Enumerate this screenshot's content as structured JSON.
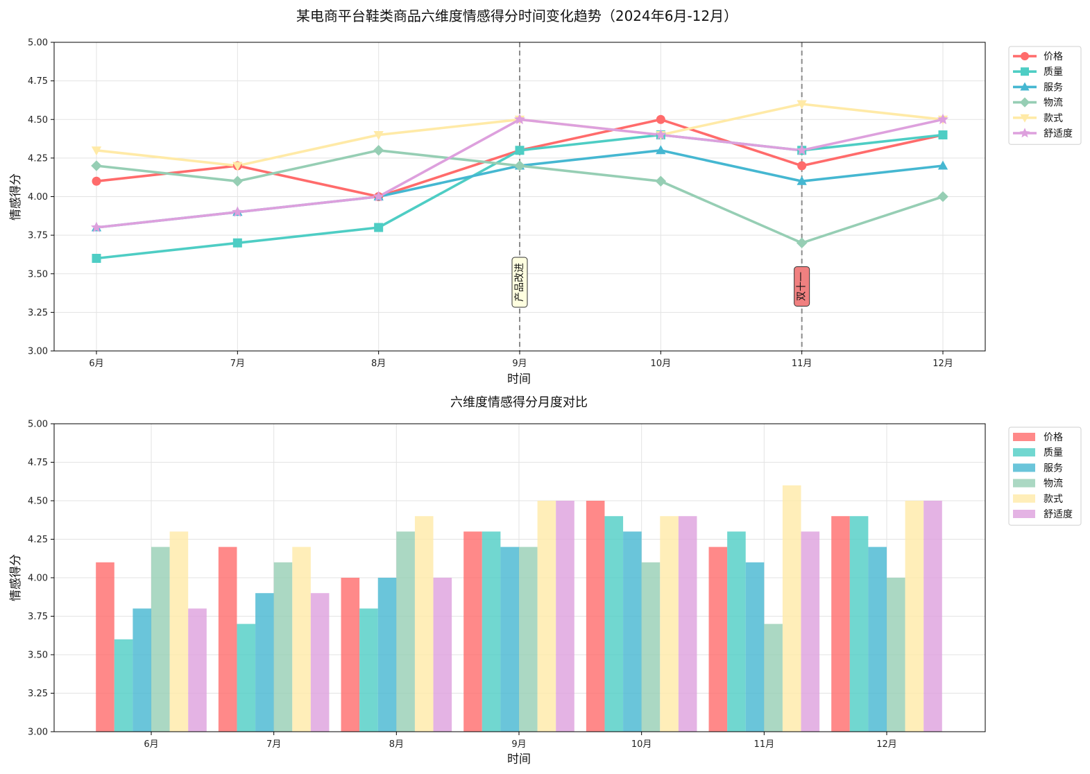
{
  "chart_data": [
    {
      "type": "line",
      "title": "某电商平台鞋类商品六维度情感得分时间变化趋势（2024年6月-12月）",
      "xlabel": "时间",
      "ylabel": "情感得分",
      "categories": [
        "6月",
        "7月",
        "8月",
        "9月",
        "10月",
        "11月",
        "12月"
      ],
      "ylim": [
        3.0,
        5.0
      ],
      "yticks": [
        "3.00",
        "3.25",
        "3.50",
        "3.75",
        "4.00",
        "4.25",
        "4.50",
        "4.75",
        "5.00"
      ],
      "grid": true,
      "legend_position": "outside-top-right",
      "series": [
        {
          "name": "价格",
          "color": "#FF6B6B",
          "marker": "circle",
          "values": [
            4.1,
            4.2,
            4.0,
            4.3,
            4.5,
            4.2,
            4.4
          ]
        },
        {
          "name": "质量",
          "color": "#4ECDC4",
          "marker": "square",
          "values": [
            3.6,
            3.7,
            3.8,
            4.3,
            4.4,
            4.3,
            4.4
          ]
        },
        {
          "name": "服务",
          "color": "#45B7D1",
          "marker": "triangle-up",
          "values": [
            3.8,
            3.9,
            4.0,
            4.2,
            4.3,
            4.1,
            4.2
          ]
        },
        {
          "name": "物流",
          "color": "#96CEB4",
          "marker": "diamond",
          "values": [
            4.2,
            4.1,
            4.3,
            4.2,
            4.1,
            3.7,
            4.0
          ]
        },
        {
          "name": "款式",
          "color": "#FFEAA7",
          "marker": "triangle-down",
          "values": [
            4.3,
            4.2,
            4.4,
            4.5,
            4.4,
            4.6,
            4.5
          ]
        },
        {
          "name": "舒适度",
          "color": "#DDA0DD",
          "marker": "star",
          "values": [
            3.8,
            3.9,
            4.0,
            4.5,
            4.4,
            4.3,
            4.5
          ]
        }
      ],
      "annotations": [
        {
          "category": "9月",
          "text": "产品改进",
          "box_color": "#FFFFE0"
        },
        {
          "category": "11月",
          "text": "双十一",
          "box_color": "#F08080"
        }
      ]
    },
    {
      "type": "bar",
      "title": "六维度情感得分月度对比",
      "xlabel": "时间",
      "ylabel": "情感得分",
      "categories": [
        "6月",
        "7月",
        "8月",
        "9月",
        "10月",
        "11月",
        "12月"
      ],
      "ylim": [
        3.0,
        5.0
      ],
      "yticks": [
        "3.00",
        "3.25",
        "3.50",
        "3.75",
        "4.00",
        "4.25",
        "4.50",
        "4.75",
        "5.00"
      ],
      "grid": true,
      "legend_position": "outside-top-right",
      "series": [
        {
          "name": "价格",
          "color": "#FF6B6B",
          "values": [
            4.1,
            4.2,
            4.0,
            4.3,
            4.5,
            4.2,
            4.4
          ]
        },
        {
          "name": "质量",
          "color": "#4ECDC4",
          "values": [
            3.6,
            3.7,
            3.8,
            4.3,
            4.4,
            4.3,
            4.4
          ]
        },
        {
          "name": "服务",
          "color": "#45B7D1",
          "values": [
            3.8,
            3.9,
            4.0,
            4.2,
            4.3,
            4.1,
            4.2
          ]
        },
        {
          "name": "物流",
          "color": "#96CEB4",
          "values": [
            4.2,
            4.1,
            4.3,
            4.2,
            4.1,
            3.7,
            4.0
          ]
        },
        {
          "name": "款式",
          "color": "#FFEAA7",
          "values": [
            4.3,
            4.2,
            4.4,
            4.5,
            4.4,
            4.6,
            4.5
          ]
        },
        {
          "name": "舒适度",
          "color": "#DDA0DD",
          "values": [
            3.8,
            3.9,
            4.0,
            4.5,
            4.4,
            4.3,
            4.5
          ]
        }
      ]
    }
  ]
}
